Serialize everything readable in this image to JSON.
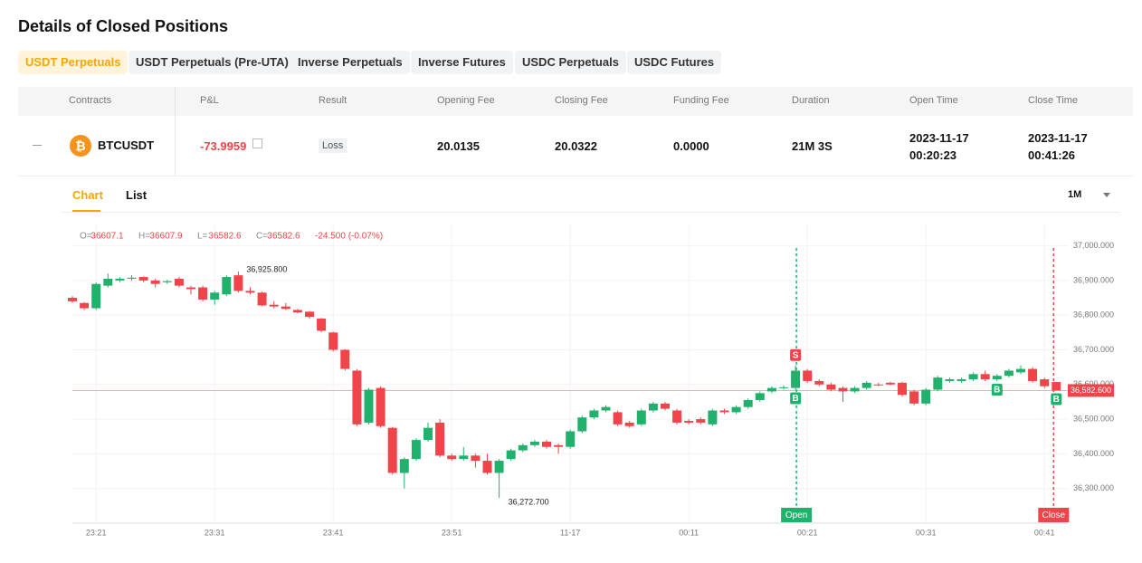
{
  "header": {
    "title": "Details of Closed Positions"
  },
  "tabs": [
    "USDT Perpetuals",
    "USDT Perpetuals (Pre-UTA)",
    "Inverse Perpetuals",
    "Inverse Futures",
    "USDC Perpetuals",
    "USDC Futures"
  ],
  "table": {
    "headers": [
      "Contracts",
      "P&L",
      "Result",
      "Opening Fee",
      "Closing Fee",
      "Funding Fee",
      "Duration",
      "Open Time",
      "Close Time"
    ],
    "rows": [
      {
        "contract": "BTCUSDT",
        "pnl": "-73.9959",
        "result": "Loss",
        "opening_fee": "20.0135",
        "closing_fee": "20.0322",
        "funding_fee": "0.0000",
        "duration": "21M 3S",
        "open_time": [
          "2023-11-17",
          "00:20:23"
        ],
        "close_time": [
          "2023-11-17",
          "00:41:26"
        ]
      }
    ]
  },
  "chart_tabs": [
    "Chart",
    "List"
  ],
  "interval": "1M",
  "chart_data": {
    "type": "candlestick",
    "legend": [
      {
        "key": "O=",
        "value": "36607.1"
      },
      {
        "key": "H=",
        "value": "36607.9"
      },
      {
        "key": "L=",
        "value": "36582.6"
      },
      {
        "key": "C=",
        "value": "36582.6"
      },
      {
        "key": "",
        "value": "-24.500 (-0.07%)"
      }
    ],
    "categories": [
      null,
      null,
      "23:21",
      null,
      null,
      null,
      null,
      null,
      null,
      null,
      null,
      null,
      "23:31",
      null,
      null,
      null,
      null,
      null,
      null,
      null,
      null,
      null,
      "23:41",
      null,
      null,
      null,
      null,
      null,
      null,
      null,
      null,
      null,
      "23:51",
      null,
      null,
      null,
      null,
      null,
      null,
      null,
      null,
      null,
      "11-17",
      null,
      null,
      null,
      null,
      null,
      null,
      null,
      null,
      null,
      "00:11",
      null,
      null,
      null,
      null,
      null,
      null,
      null,
      null,
      null,
      "00:21",
      null,
      null,
      null,
      null,
      null,
      null,
      null,
      null,
      null,
      "00:31",
      null,
      null,
      null,
      null,
      null,
      null,
      null,
      null,
      null,
      "00:41",
      null
    ],
    "open": [
      36850,
      36835,
      36820,
      36885,
      36900,
      36905,
      36910,
      36900,
      36895,
      36905,
      36880,
      36880,
      36845,
      36860,
      36915,
      36870,
      36865,
      36830,
      36825,
      36815,
      36810,
      36790,
      36750,
      36700,
      36640,
      36490,
      36590,
      36475,
      36345,
      36385,
      36440,
      36490,
      36395,
      36385,
      36395,
      36380,
      36345,
      36385,
      36410,
      36425,
      36435,
      36425,
      36420,
      36465,
      36505,
      36525,
      36520,
      36490,
      36485,
      36525,
      36545,
      36525,
      36495,
      36500,
      36485,
      36525,
      36520,
      36535,
      36555,
      36580,
      36590,
      36590,
      36640,
      36610,
      36600,
      36590,
      36580,
      36590,
      36600,
      36605,
      36605,
      36580,
      36545,
      36585,
      36610,
      36610,
      36615,
      36630,
      36615,
      36625,
      36635,
      36645,
      36615,
      36607.1
    ],
    "high": [
      36855,
      36838,
      36895,
      36920,
      36910,
      36915,
      36912,
      36905,
      36902,
      36910,
      36885,
      36885,
      36870,
      36915,
      36925.8,
      36880,
      36868,
      36840,
      36835,
      36818,
      36812,
      36792,
      36752,
      36702,
      36645,
      36590,
      36595,
      36478,
      36390,
      36445,
      36490,
      36500,
      36400,
      36420,
      36400,
      36400,
      36385,
      36415,
      36430,
      36440,
      36440,
      36430,
      36470,
      36510,
      36530,
      36540,
      36525,
      36495,
      36530,
      36550,
      36550,
      36530,
      36500,
      36505,
      36530,
      36530,
      36540,
      36560,
      36580,
      36595,
      36597,
      36655,
      36645,
      36615,
      36605,
      36595,
      36595,
      36610,
      36605,
      36608,
      36608,
      36585,
      36590,
      36625,
      36620,
      36620,
      36635,
      36640,
      36630,
      36645,
      36655,
      36650,
      36620,
      36607.9
    ],
    "low": [
      36835,
      36815,
      36815,
      36880,
      36895,
      36900,
      36895,
      36880,
      36890,
      36880,
      36860,
      36840,
      36830,
      36855,
      36865,
      36860,
      36825,
      36820,
      36815,
      36805,
      36790,
      36750,
      36695,
      36640,
      36480,
      36485,
      36475,
      36340,
      36300,
      36380,
      36435,
      36390,
      36380,
      36380,
      36360,
      36340,
      36272.7,
      36380,
      36405,
      36420,
      36415,
      36400,
      36415,
      36460,
      36500,
      36520,
      36480,
      36475,
      36480,
      36520,
      36525,
      36485,
      36485,
      36485,
      36480,
      36515,
      36515,
      36530,
      36550,
      36575,
      36585,
      36585,
      36605,
      36595,
      36580,
      36550,
      36575,
      36585,
      36595,
      36598,
      36565,
      36540,
      36540,
      36580,
      36605,
      36605,
      36610,
      36610,
      36610,
      36620,
      36630,
      36605,
      36590,
      36582.6
    ],
    "close": [
      36840,
      36820,
      36890,
      36905,
      36905,
      36908,
      36900,
      36890,
      36898,
      36885,
      36875,
      36845,
      36865,
      36910,
      36870,
      36865,
      36828,
      36825,
      36818,
      36808,
      36795,
      36755,
      36700,
      36645,
      36485,
      36585,
      36480,
      36345,
      36385,
      36440,
      36475,
      36395,
      36385,
      36395,
      36380,
      36345,
      36380,
      36410,
      36425,
      36435,
      36420,
      36420,
      36465,
      36505,
      36525,
      36535,
      36485,
      36480,
      36525,
      36545,
      36530,
      36490,
      36490,
      36490,
      36525,
      36520,
      36535,
      36555,
      36575,
      36590,
      36592,
      36640,
      36610,
      36600,
      36585,
      36580,
      36590,
      36605,
      36598,
      36600,
      36570,
      36545,
      36585,
      36620,
      36615,
      36615,
      36630,
      36615,
      36625,
      36640,
      36645,
      36610,
      36595,
      36582.6
    ],
    "colors": {
      "up": "#20b26c",
      "down": "#ef454a"
    },
    "ylim": [
      36200,
      37025
    ],
    "yticks": [
      {
        "value": 36300,
        "label": "36,300.000"
      },
      {
        "value": 36400,
        "label": "36,400.000"
      },
      {
        "value": 36500,
        "label": "36,500.000"
      },
      {
        "value": 36600,
        "label": "36,600.000"
      },
      {
        "value": 36700,
        "label": "36,700.000"
      },
      {
        "value": 36800,
        "label": "36,800.000"
      },
      {
        "value": 36900,
        "label": "36,900.000"
      },
      {
        "value": 37000,
        "label": "37,000.000"
      }
    ],
    "grid": true,
    "annotations": {
      "max": "36,925.800",
      "min": "36,272.700",
      "last": "36,582.600"
    },
    "trade_markers": [
      "S",
      "B",
      "B",
      "B"
    ],
    "position_lines": [
      "Open",
      "Close"
    ]
  }
}
